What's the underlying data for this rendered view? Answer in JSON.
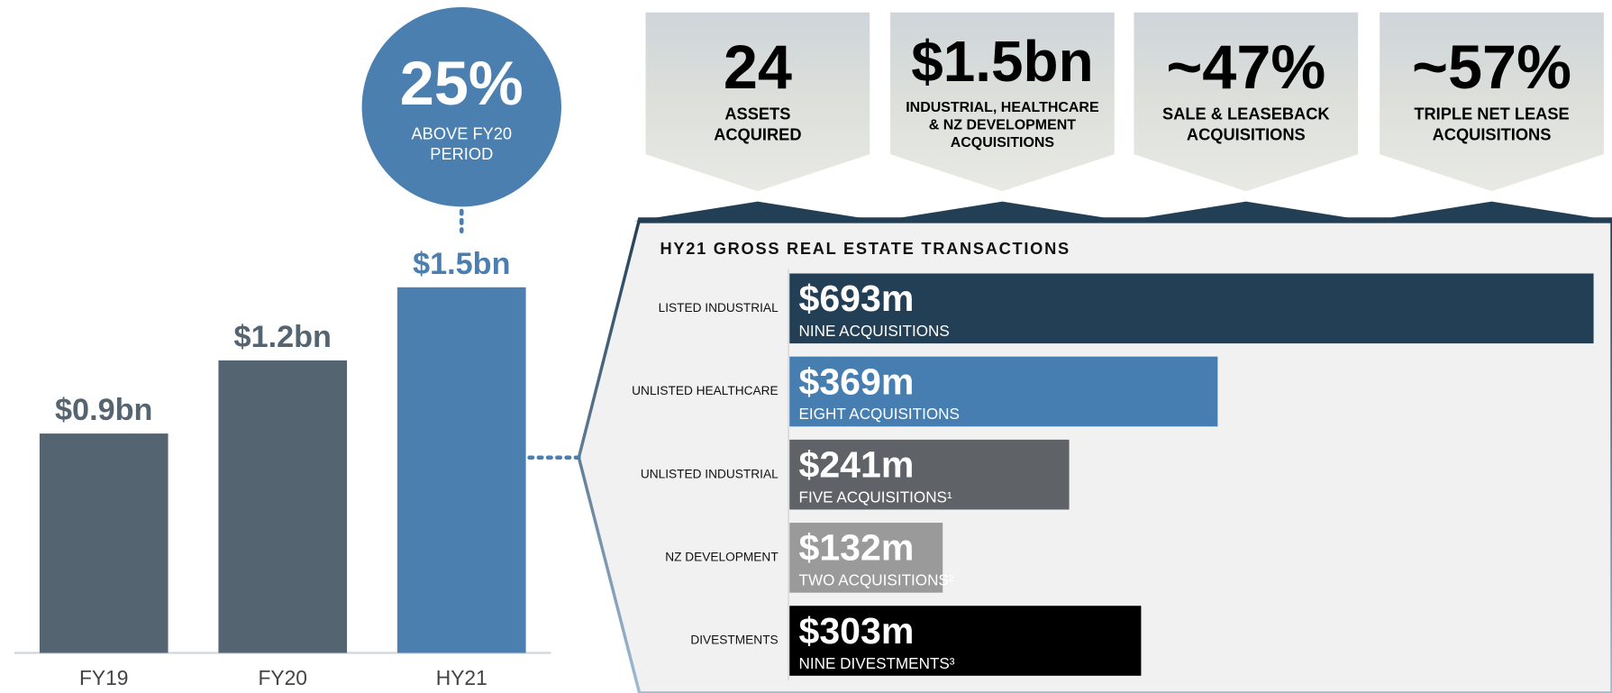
{
  "chart_data": [
    {
      "type": "bar",
      "categories": [
        "FY19",
        "FY20",
        "HY21"
      ],
      "values": [
        0.9,
        1.2,
        1.5
      ],
      "value_labels": [
        "$0.9bn",
        "$1.2bn",
        "$1.5bn"
      ],
      "colors": [
        "#546470",
        "#546470",
        "#4a7fb0"
      ],
      "ylim": [
        0,
        1.7
      ],
      "callout": {
        "headline": "25%",
        "lines": [
          "ABOVE FY20",
          "PERIOD"
        ],
        "color": "#4a7fb0"
      }
    },
    {
      "type": "barh",
      "title": "HY21 GROSS REAL ESTATE TRANSACTIONS",
      "categories": [
        "LISTED INDUSTRIAL",
        "UNLISTED HEALTHCARE",
        "UNLISTED INDUSTRIAL",
        "NZ DEVELOPMENT",
        "DIVESTMENTS"
      ],
      "values": [
        693,
        369,
        241,
        132,
        303
      ],
      "value_labels": [
        "$693m",
        "$369m",
        "$241m",
        "$132m",
        "$303m"
      ],
      "sublabels": [
        "NINE ACQUISITIONS",
        "EIGHT ACQUISITIONS",
        "FIVE ACQUISITIONS¹",
        "TWO ACQUISITIONS²",
        "NINE DIVESTMENTS³"
      ],
      "colors": [
        "#233f55",
        "#477eb1",
        "#5f6368",
        "#9a9a9a",
        "#000000"
      ],
      "xlim": [
        0,
        700
      ]
    }
  ],
  "highlights": [
    {
      "headline": "24",
      "lines": [
        "ASSETS",
        "ACQUIRED"
      ]
    },
    {
      "headline": "$1.5bn",
      "lines": [
        "INDUSTRIAL, HEALTHCARE",
        "& NZ DEVELOPMENT",
        "ACQUISITIONS"
      ]
    },
    {
      "headline": "~47%",
      "lines": [
        "SALE & LEASEBACK",
        "ACQUISITIONS"
      ]
    },
    {
      "headline": "~57%",
      "lines": [
        "TRIPLE NET LEASE",
        "ACQUISITIONS"
      ]
    }
  ]
}
